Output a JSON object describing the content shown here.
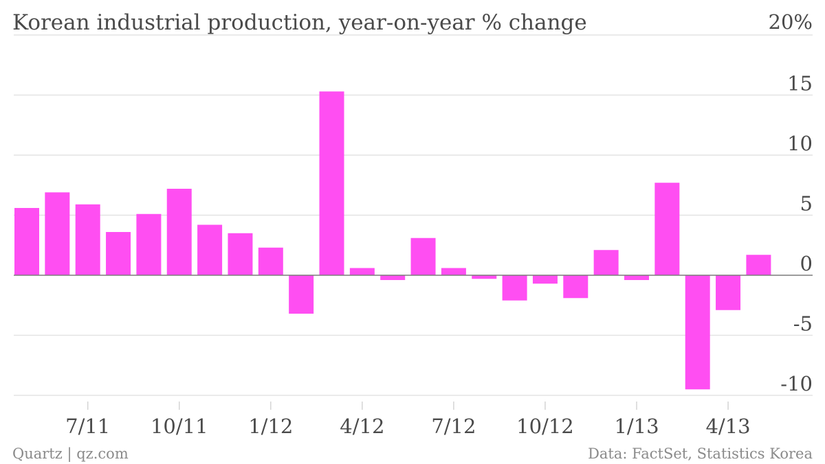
{
  "chart_data": {
    "type": "bar",
    "title": "Korean industrial production, year-on-year % change",
    "xlabel": "",
    "ylabel": "",
    "ylim": [
      -10,
      20
    ],
    "yticks": [
      20,
      15,
      10,
      5,
      0,
      -5,
      -10
    ],
    "ytick_labels": [
      "20%",
      "15",
      "10",
      "5",
      "0",
      "-5",
      "-10"
    ],
    "x_tick_labels": [
      {
        "label": "7/11",
        "index": 2.5
      },
      {
        "label": "10/11",
        "index": 5.5
      },
      {
        "label": "1/12",
        "index": 8.5
      },
      {
        "label": "4/12",
        "index": 11.5
      },
      {
        "label": "7/12",
        "index": 14.5
      },
      {
        "label": "10/12",
        "index": 17.5
      },
      {
        "label": "1/13",
        "index": 20.5
      },
      {
        "label": "4/13",
        "index": 23.5
      }
    ],
    "series": [
      {
        "color": "#ff4ef2",
        "values": [
          5.6,
          6.9,
          5.9,
          3.6,
          5.1,
          7.2,
          4.2,
          3.5,
          2.3,
          -3.2,
          15.3,
          0.6,
          -0.4,
          3.1,
          0.6,
          -0.3,
          -2.1,
          -0.7,
          -1.9,
          2.1,
          -0.4,
          7.7,
          -9.5,
          -2.9,
          1.7
        ]
      }
    ],
    "grid": true,
    "colors": {
      "bar": "#ff4ef2",
      "grid": "#e3e3e3",
      "zero_line": "#7a7a7a",
      "text": "#4a4a4a",
      "footer_text": "#8a8a8a"
    }
  },
  "footer": {
    "left": "Quartz | qz.com",
    "right": "Data: FactSet, Statistics Korea"
  }
}
